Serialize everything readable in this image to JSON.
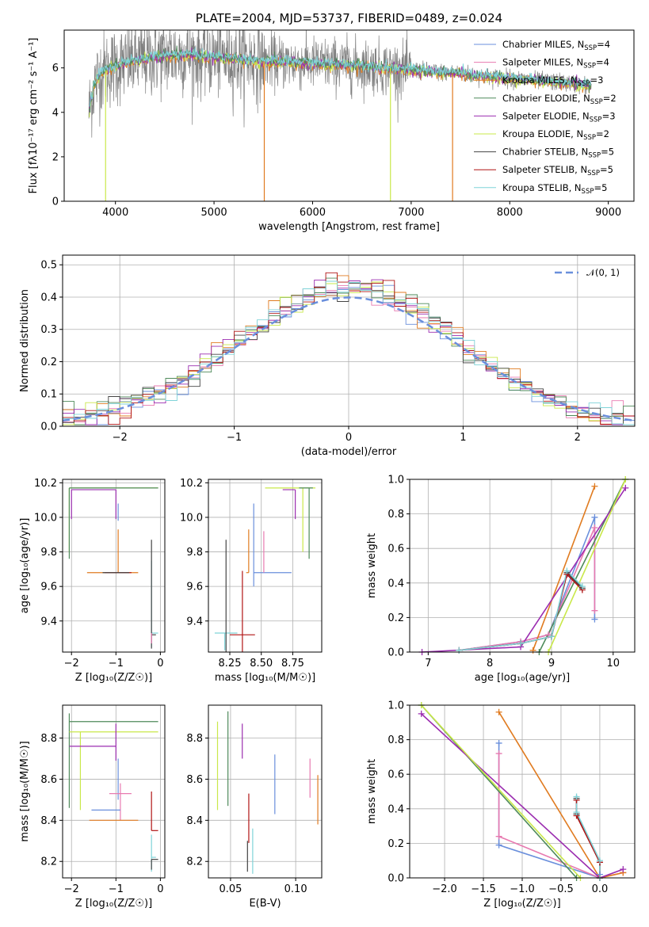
{
  "colors": {
    "chabrier_miles": "#6a8fdc",
    "salpeter_miles": "#e87ab0",
    "kroupa_miles": "#e07b20",
    "chabrier_elodie": "#4e8a5a",
    "salpeter_elodie": "#9b2db0",
    "kroupa_elodie": "#c9e84a",
    "chabrier_stelib": "#444444",
    "salpeter_stelib": "#b01414",
    "kroupa_stelib": "#7fd3d8",
    "gauss": "#6a8fdc",
    "data": "#808080"
  },
  "chart_data": [
    {
      "id": "spectrum",
      "type": "line",
      "title": "PLATE=2004, MJD=53737, FIBERID=0489, z=0.024",
      "xlabel": "wavelength [Angstrom, rest frame]",
      "ylabel": "Flux [fλ10⁻¹⁷ erg cm⁻² s⁻¹ A⁻¹]",
      "xlim": [
        3480,
        9260
      ],
      "ylim": [
        0,
        7.7
      ],
      "xticks": [
        4000,
        5000,
        6000,
        7000,
        8000,
        9000
      ],
      "yticks": [
        0,
        2,
        4,
        6
      ],
      "grid": false,
      "legend_position": "top-right",
      "data_range": [
        3730,
        8830
      ],
      "continuum_anchor_points": [
        [
          3730,
          4.0
        ],
        [
          3780,
          5.2
        ],
        [
          3850,
          5.8
        ],
        [
          3950,
          6.0
        ],
        [
          4100,
          6.2
        ],
        [
          4400,
          6.5
        ],
        [
          4700,
          6.6
        ],
        [
          5000,
          6.5
        ],
        [
          5500,
          6.3
        ],
        [
          6000,
          6.2
        ],
        [
          6500,
          6.1
        ],
        [
          7000,
          5.9
        ],
        [
          7500,
          5.75
        ],
        [
          7800,
          5.6
        ],
        [
          8200,
          5.45
        ],
        [
          8500,
          5.35
        ],
        [
          8830,
          5.2
        ]
      ],
      "legend": [
        {
          "key": "chabrier_miles",
          "label": "Chabrier MILES, N",
          "sub": "SSP",
          "suffix": "=4"
        },
        {
          "key": "salpeter_miles",
          "label": "Salpeter MILES, N",
          "sub": "SSP",
          "suffix": "=4"
        },
        {
          "key": "kroupa_miles",
          "label": "Kroupa MILES, N",
          "sub": "SSP",
          "suffix": "=3"
        },
        {
          "key": "chabrier_elodie",
          "label": "Chabrier ELODIE, N",
          "sub": "SSP",
          "suffix": "=2"
        },
        {
          "key": "salpeter_elodie",
          "label": "Salpeter ELODIE, N",
          "sub": "SSP",
          "suffix": "=3"
        },
        {
          "key": "kroupa_elodie",
          "label": "Kroupa ELODIE, N",
          "sub": "SSP",
          "suffix": "=2"
        },
        {
          "key": "chabrier_stelib",
          "label": "Chabrier STELIB, N",
          "sub": "SSP",
          "suffix": "=5"
        },
        {
          "key": "salpeter_stelib",
          "label": "Salpeter STELIB, N",
          "sub": "SSP",
          "suffix": "=5"
        },
        {
          "key": "kroupa_stelib",
          "label": "Kroupa STELIB, N",
          "sub": "SSP",
          "suffix": "=5"
        }
      ]
    },
    {
      "id": "residuals",
      "type": "histogram",
      "xlabel": "(data-model)/error",
      "ylabel": "Normed distribution",
      "xlim": [
        -2.5,
        2.5
      ],
      "ylim": [
        0,
        0.53
      ],
      "xticks": [
        -2,
        -1,
        0,
        1,
        2
      ],
      "yticks": [
        0.0,
        0.1,
        0.2,
        0.3,
        0.4,
        0.5
      ],
      "grid": true,
      "bin_width": 0.1,
      "legend": [
        {
          "key": "gauss",
          "label": "𝒩(0, 1)",
          "style": "dashed"
        }
      ],
      "legend_position": "top-right"
    },
    {
      "id": "age_vs_Z",
      "type": "errorbar",
      "xlabel": "Z [log₁₀(Z/Z☉)]",
      "ylabel": "age  [log₁₀(age/yr)]",
      "xlim": [
        -2.2,
        0.1
      ],
      "ylim": [
        9.22,
        10.22
      ],
      "xticks": [
        -2,
        -1,
        0
      ],
      "yticks": [
        9.4,
        9.6,
        9.8,
        10.0,
        10.2
      ],
      "grid": true,
      "points": [
        {
          "key": "kroupa_elodie",
          "x": -2.05,
          "xerr": [
            0.0,
            2.0
          ],
          "y": 10.17,
          "yerr": [
            0.37,
            0.0
          ]
        },
        {
          "key": "chabrier_elodie",
          "x": -2.05,
          "xerr": [
            0.0,
            2.0
          ],
          "y": 10.17,
          "yerr": [
            0.41,
            0.0
          ]
        },
        {
          "key": "salpeter_elodie",
          "x": -2.0,
          "xerr": [
            0.0,
            1.0
          ],
          "y": 10.16,
          "yerr": [
            0.17,
            0.0
          ]
        },
        {
          "key": "salpeter_elodie",
          "x": -1.0,
          "xerr": [
            0.0,
            0.0
          ],
          "y": 10.16,
          "yerr": [
            0.17,
            0.0
          ]
        },
        {
          "key": "chabrier_miles",
          "x": -0.95,
          "xerr": [
            0.0,
            0.0
          ],
          "y": 10.03,
          "yerr": [
            0.05,
            0.05
          ]
        },
        {
          "key": "kroupa_miles",
          "x": -0.95,
          "xerr": [
            0.7,
            0.45
          ],
          "y": 9.68,
          "yerr": [
            0.0,
            0.25
          ]
        },
        {
          "key": "salpeter_stelib",
          "x": -0.95,
          "xerr": [
            0.3,
            0.3
          ],
          "y": 9.68,
          "yerr": [
            0.0,
            0.0
          ]
        },
        {
          "key": "chabrier_stelib",
          "x": -1.0,
          "xerr": [
            0.3,
            0.3
          ],
          "y": 9.68,
          "yerr": [
            0.0,
            0.0
          ]
        },
        {
          "key": "kroupa_stelib",
          "x": -0.2,
          "xerr": [
            0.0,
            0.15
          ],
          "y": 9.33,
          "yerr": [
            0.08,
            0.42
          ]
        },
        {
          "key": "chabrier_stelib",
          "x": -0.2,
          "xerr": [
            0.0,
            0.1
          ],
          "y": 9.32,
          "yerr": [
            0.08,
            0.55
          ]
        },
        {
          "key": "salpeter_miles",
          "x": -0.2,
          "xerr": [
            0.0,
            0.0
          ],
          "y": 9.33,
          "yerr": [
            0.06,
            0.0
          ]
        }
      ]
    },
    {
      "id": "age_vs_mass",
      "type": "errorbar",
      "xlabel": "mass [log₁₀(M/M☉)]",
      "ylabel": "",
      "xlim": [
        8.08,
        8.98
      ],
      "ylim": [
        9.22,
        10.22
      ],
      "xticks": [
        8.25,
        8.5,
        8.75
      ],
      "yticks": [
        9.4,
        9.6,
        9.8,
        10.0,
        10.2
      ],
      "grid": true,
      "points": [
        {
          "key": "kroupa_elodie",
          "x": 8.83,
          "xerr": [
            0.3,
            0.1
          ],
          "y": 10.17,
          "yerr": [
            0.37,
            0.0
          ]
        },
        {
          "key": "chabrier_elodie",
          "x": 8.88,
          "xerr": [
            0.08,
            0.03
          ],
          "y": 10.17,
          "yerr": [
            0.41,
            0.0
          ]
        },
        {
          "key": "salpeter_elodie",
          "x": 8.77,
          "xerr": [
            0.1,
            0.0
          ],
          "y": 10.16,
          "yerr": [
            0.17,
            0.0
          ]
        },
        {
          "key": "chabrier_miles",
          "x": 8.44,
          "xerr": [
            0.0,
            0.3
          ],
          "y": 9.68,
          "yerr": [
            0.08,
            0.4
          ]
        },
        {
          "key": "kroupa_miles",
          "x": 8.4,
          "xerr": [
            0.02,
            0.0
          ],
          "y": 9.68,
          "yerr": [
            0.0,
            0.25
          ]
        },
        {
          "key": "salpeter_miles",
          "x": 8.52,
          "xerr": [
            0.0,
            0.0
          ],
          "y": 9.68,
          "yerr": [
            0.0,
            0.24
          ]
        },
        {
          "key": "salpeter_stelib",
          "x": 8.35,
          "xerr": [
            0.1,
            0.1
          ],
          "y": 9.32,
          "yerr": [
            0.14,
            0.37
          ]
        },
        {
          "key": "kroupa_stelib",
          "x": 8.21,
          "xerr": [
            0.08,
            0.1
          ],
          "y": 9.33,
          "yerr": [
            0.1,
            0.0
          ]
        },
        {
          "key": "chabrier_stelib",
          "x": 8.22,
          "xerr": [
            0.0,
            0.0
          ],
          "y": 9.32,
          "yerr": [
            0.1,
            0.55
          ]
        }
      ]
    },
    {
      "id": "weight_vs_age",
      "type": "line",
      "xlabel": "age  [log₁₀(age/yr)]",
      "ylabel": "mass weight",
      "xlim": [
        6.7,
        10.35
      ],
      "ylim": [
        0,
        1
      ],
      "xticks": [
        7,
        8,
        9,
        10
      ],
      "yticks": [
        0.0,
        0.2,
        0.4,
        0.6,
        0.8,
        1.0
      ],
      "grid": true,
      "series": [
        {
          "key": "chabrier_miles",
          "x": [
            7.5,
            8.5,
            8.95,
            9.7,
            9.7
          ],
          "y": [
            0.01,
            0.06,
            0.1,
            0.78,
            0.19
          ]
        },
        {
          "key": "salpeter_miles",
          "x": [
            7.5,
            8.5,
            8.95,
            9.7,
            9.7
          ],
          "y": [
            0.01,
            0.06,
            0.1,
            0.72,
            0.24
          ]
        },
        {
          "key": "kroupa_miles",
          "x": [
            8.7,
            9.7
          ],
          "y": [
            0.01,
            0.96
          ]
        },
        {
          "key": "chabrier_elodie",
          "x": [
            8.8,
            10.2
          ],
          "y": [
            0.0,
            1.0
          ]
        },
        {
          "key": "salpeter_elodie",
          "x": [
            6.9,
            8.5,
            10.2
          ],
          "y": [
            0.0,
            0.03,
            0.95
          ]
        },
        {
          "key": "kroupa_elodie",
          "x": [
            8.95,
            10.2
          ],
          "y": [
            0.0,
            1.0
          ]
        },
        {
          "key": "chabrier_stelib",
          "x": [
            7.5,
            8.5,
            9.0,
            9.25,
            9.5
          ],
          "y": [
            0.01,
            0.05,
            0.09,
            0.46,
            0.37
          ]
        },
        {
          "key": "salpeter_stelib",
          "x": [
            7.5,
            8.5,
            9.0,
            9.25,
            9.5
          ],
          "y": [
            0.01,
            0.05,
            0.09,
            0.45,
            0.36
          ]
        },
        {
          "key": "kroupa_stelib",
          "x": [
            7.5,
            8.5,
            9.0,
            9.25,
            9.5
          ],
          "y": [
            0.01,
            0.05,
            0.09,
            0.47,
            0.38
          ]
        }
      ]
    },
    {
      "id": "mass_vs_Z",
      "type": "errorbar",
      "xlabel": "Z [log₁₀(Z/Z☉)]",
      "ylabel": "mass [log₁₀(M/M☉)]",
      "xlim": [
        -2.2,
        0.1
      ],
      "ylim": [
        8.12,
        8.96
      ],
      "xticks": [
        -2,
        -1,
        0
      ],
      "yticks": [
        8.2,
        8.4,
        8.6,
        8.8
      ],
      "grid": true,
      "points": [
        {
          "key": "chabrier_elodie",
          "x": -2.05,
          "xerr": [
            0.0,
            2.0
          ],
          "y": 8.88,
          "yerr": [
            0.42,
            0.04
          ]
        },
        {
          "key": "kroupa_elodie",
          "x": -1.8,
          "xerr": [
            0.25,
            1.75
          ],
          "y": 8.83,
          "yerr": [
            0.38,
            0.0
          ]
        },
        {
          "key": "salpeter_elodie",
          "x": -2.05,
          "xerr": [
            0.0,
            1.05
          ],
          "y": 8.76,
          "yerr": [
            0.0,
            0.0
          ]
        },
        {
          "key": "salpeter_elodie",
          "x": -1.0,
          "xerr": [
            0.0,
            0.0
          ],
          "y": 8.76,
          "yerr": [
            0.07,
            0.11
          ]
        },
        {
          "key": "chabrier_miles",
          "x": -0.95,
          "xerr": [
            0.0,
            0.0
          ],
          "y": 8.6,
          "yerr": [
            0.1,
            0.1
          ]
        },
        {
          "key": "salpeter_miles",
          "x": -0.9,
          "xerr": [
            0.25,
            0.25
          ],
          "y": 8.53,
          "yerr": [
            0.13,
            0.05
          ]
        },
        {
          "key": "chabrier_miles",
          "x": -1.2,
          "xerr": [
            0.35,
            0.3
          ],
          "y": 8.45,
          "yerr": [
            0.0,
            0.0
          ]
        },
        {
          "key": "kroupa_miles",
          "x": -1.3,
          "xerr": [
            0.3,
            0.8
          ],
          "y": 8.4,
          "yerr": [
            0.0,
            0.0
          ]
        },
        {
          "key": "salpeter_stelib",
          "x": -0.2,
          "xerr": [
            0.0,
            0.15
          ],
          "y": 8.35,
          "yerr": [
            0.0,
            0.19
          ]
        },
        {
          "key": "kroupa_stelib",
          "x": -0.2,
          "xerr": [
            0.0,
            0.1
          ],
          "y": 8.22,
          "yerr": [
            0.07,
            0.11
          ]
        },
        {
          "key": "chabrier_stelib",
          "x": -0.2,
          "xerr": [
            0.0,
            0.15
          ],
          "y": 8.21,
          "yerr": [
            0.05,
            0.0
          ]
        }
      ]
    },
    {
      "id": "mass_vs_ebv",
      "type": "errorbar",
      "xlabel": "E(B-V)",
      "ylabel": "",
      "xlim": [
        0.033,
        0.12
      ],
      "ylim": [
        8.12,
        8.96
      ],
      "xticks": [
        0.05,
        0.1
      ],
      "yticks": [
        8.2,
        8.4,
        8.6,
        8.8
      ],
      "grid": true,
      "points": [
        {
          "key": "kroupa_elodie",
          "x": 0.04,
          "y": 8.67,
          "yerr": [
            0.22,
            0.21
          ]
        },
        {
          "key": "chabrier_elodie",
          "x": 0.048,
          "y": 8.7,
          "yerr": [
            0.23,
            0.23
          ]
        },
        {
          "key": "salpeter_elodie",
          "x": 0.059,
          "y": 8.79,
          "yerr": [
            0.09,
            0.08
          ]
        },
        {
          "key": "salpeter_stelib",
          "x": 0.064,
          "y": 8.38,
          "yerr": [
            0.09,
            0.15
          ]
        },
        {
          "key": "kroupa_stelib",
          "x": 0.067,
          "y": 8.24,
          "yerr": [
            0.1,
            0.12
          ]
        },
        {
          "key": "chabrier_stelib",
          "x": 0.063,
          "y": 8.2,
          "yerr": [
            0.05,
            0.1
          ]
        },
        {
          "key": "chabrier_miles",
          "x": 0.084,
          "y": 8.58,
          "yerr": [
            0.15,
            0.14
          ]
        },
        {
          "key": "salpeter_miles",
          "x": 0.111,
          "y": 8.6,
          "yerr": [
            0.09,
            0.1
          ]
        },
        {
          "key": "kroupa_miles",
          "x": 0.117,
          "y": 8.5,
          "yerr": [
            0.12,
            0.12
          ]
        }
      ]
    },
    {
      "id": "weight_vs_Z",
      "type": "line",
      "xlabel": "Z [log₁₀(Z/Z☉)]",
      "ylabel": "mass weight",
      "xlim": [
        -2.45,
        0.45
      ],
      "ylim": [
        0,
        1
      ],
      "xticks": [
        -2.0,
        -1.5,
        -1.0,
        -0.5,
        0.0
      ],
      "yticks": [
        0.0,
        0.2,
        0.4,
        0.6,
        0.8,
        1.0
      ],
      "grid": true,
      "series": [
        {
          "key": "chabrier_miles",
          "x": [
            -1.3,
            -1.3,
            0.0,
            0.0
          ],
          "y": [
            0.78,
            0.19,
            0.0,
            0.02
          ]
        },
        {
          "key": "salpeter_miles",
          "x": [
            -1.3,
            -1.3,
            0.0,
            0.3
          ],
          "y": [
            0.72,
            0.24,
            0.0,
            0.03
          ]
        },
        {
          "key": "kroupa_miles",
          "x": [
            -1.3,
            0.0,
            0.3
          ],
          "y": [
            0.96,
            0.0,
            0.03
          ]
        },
        {
          "key": "chabrier_elodie",
          "x": [
            -2.3,
            -0.3
          ],
          "y": [
            1.0,
            0.0
          ]
        },
        {
          "key": "salpeter_elodie",
          "x": [
            -2.3,
            0.0,
            0.3
          ],
          "y": [
            0.95,
            0.0,
            0.05
          ]
        },
        {
          "key": "kroupa_elodie",
          "x": [
            -2.3,
            -0.25
          ],
          "y": [
            1.0,
            0.0
          ]
        },
        {
          "key": "chabrier_stelib",
          "x": [
            -0.3,
            -0.3,
            0.0,
            0.0
          ],
          "y": [
            0.46,
            0.37,
            0.09,
            0.0
          ]
        },
        {
          "key": "salpeter_stelib",
          "x": [
            -0.3,
            -0.3,
            0.0,
            0.0
          ],
          "y": [
            0.45,
            0.36,
            0.09,
            0.0
          ]
        },
        {
          "key": "kroupa_stelib",
          "x": [
            -0.3,
            -0.3,
            0.0,
            0.0
          ],
          "y": [
            0.47,
            0.38,
            0.1,
            0.0
          ]
        }
      ]
    }
  ]
}
